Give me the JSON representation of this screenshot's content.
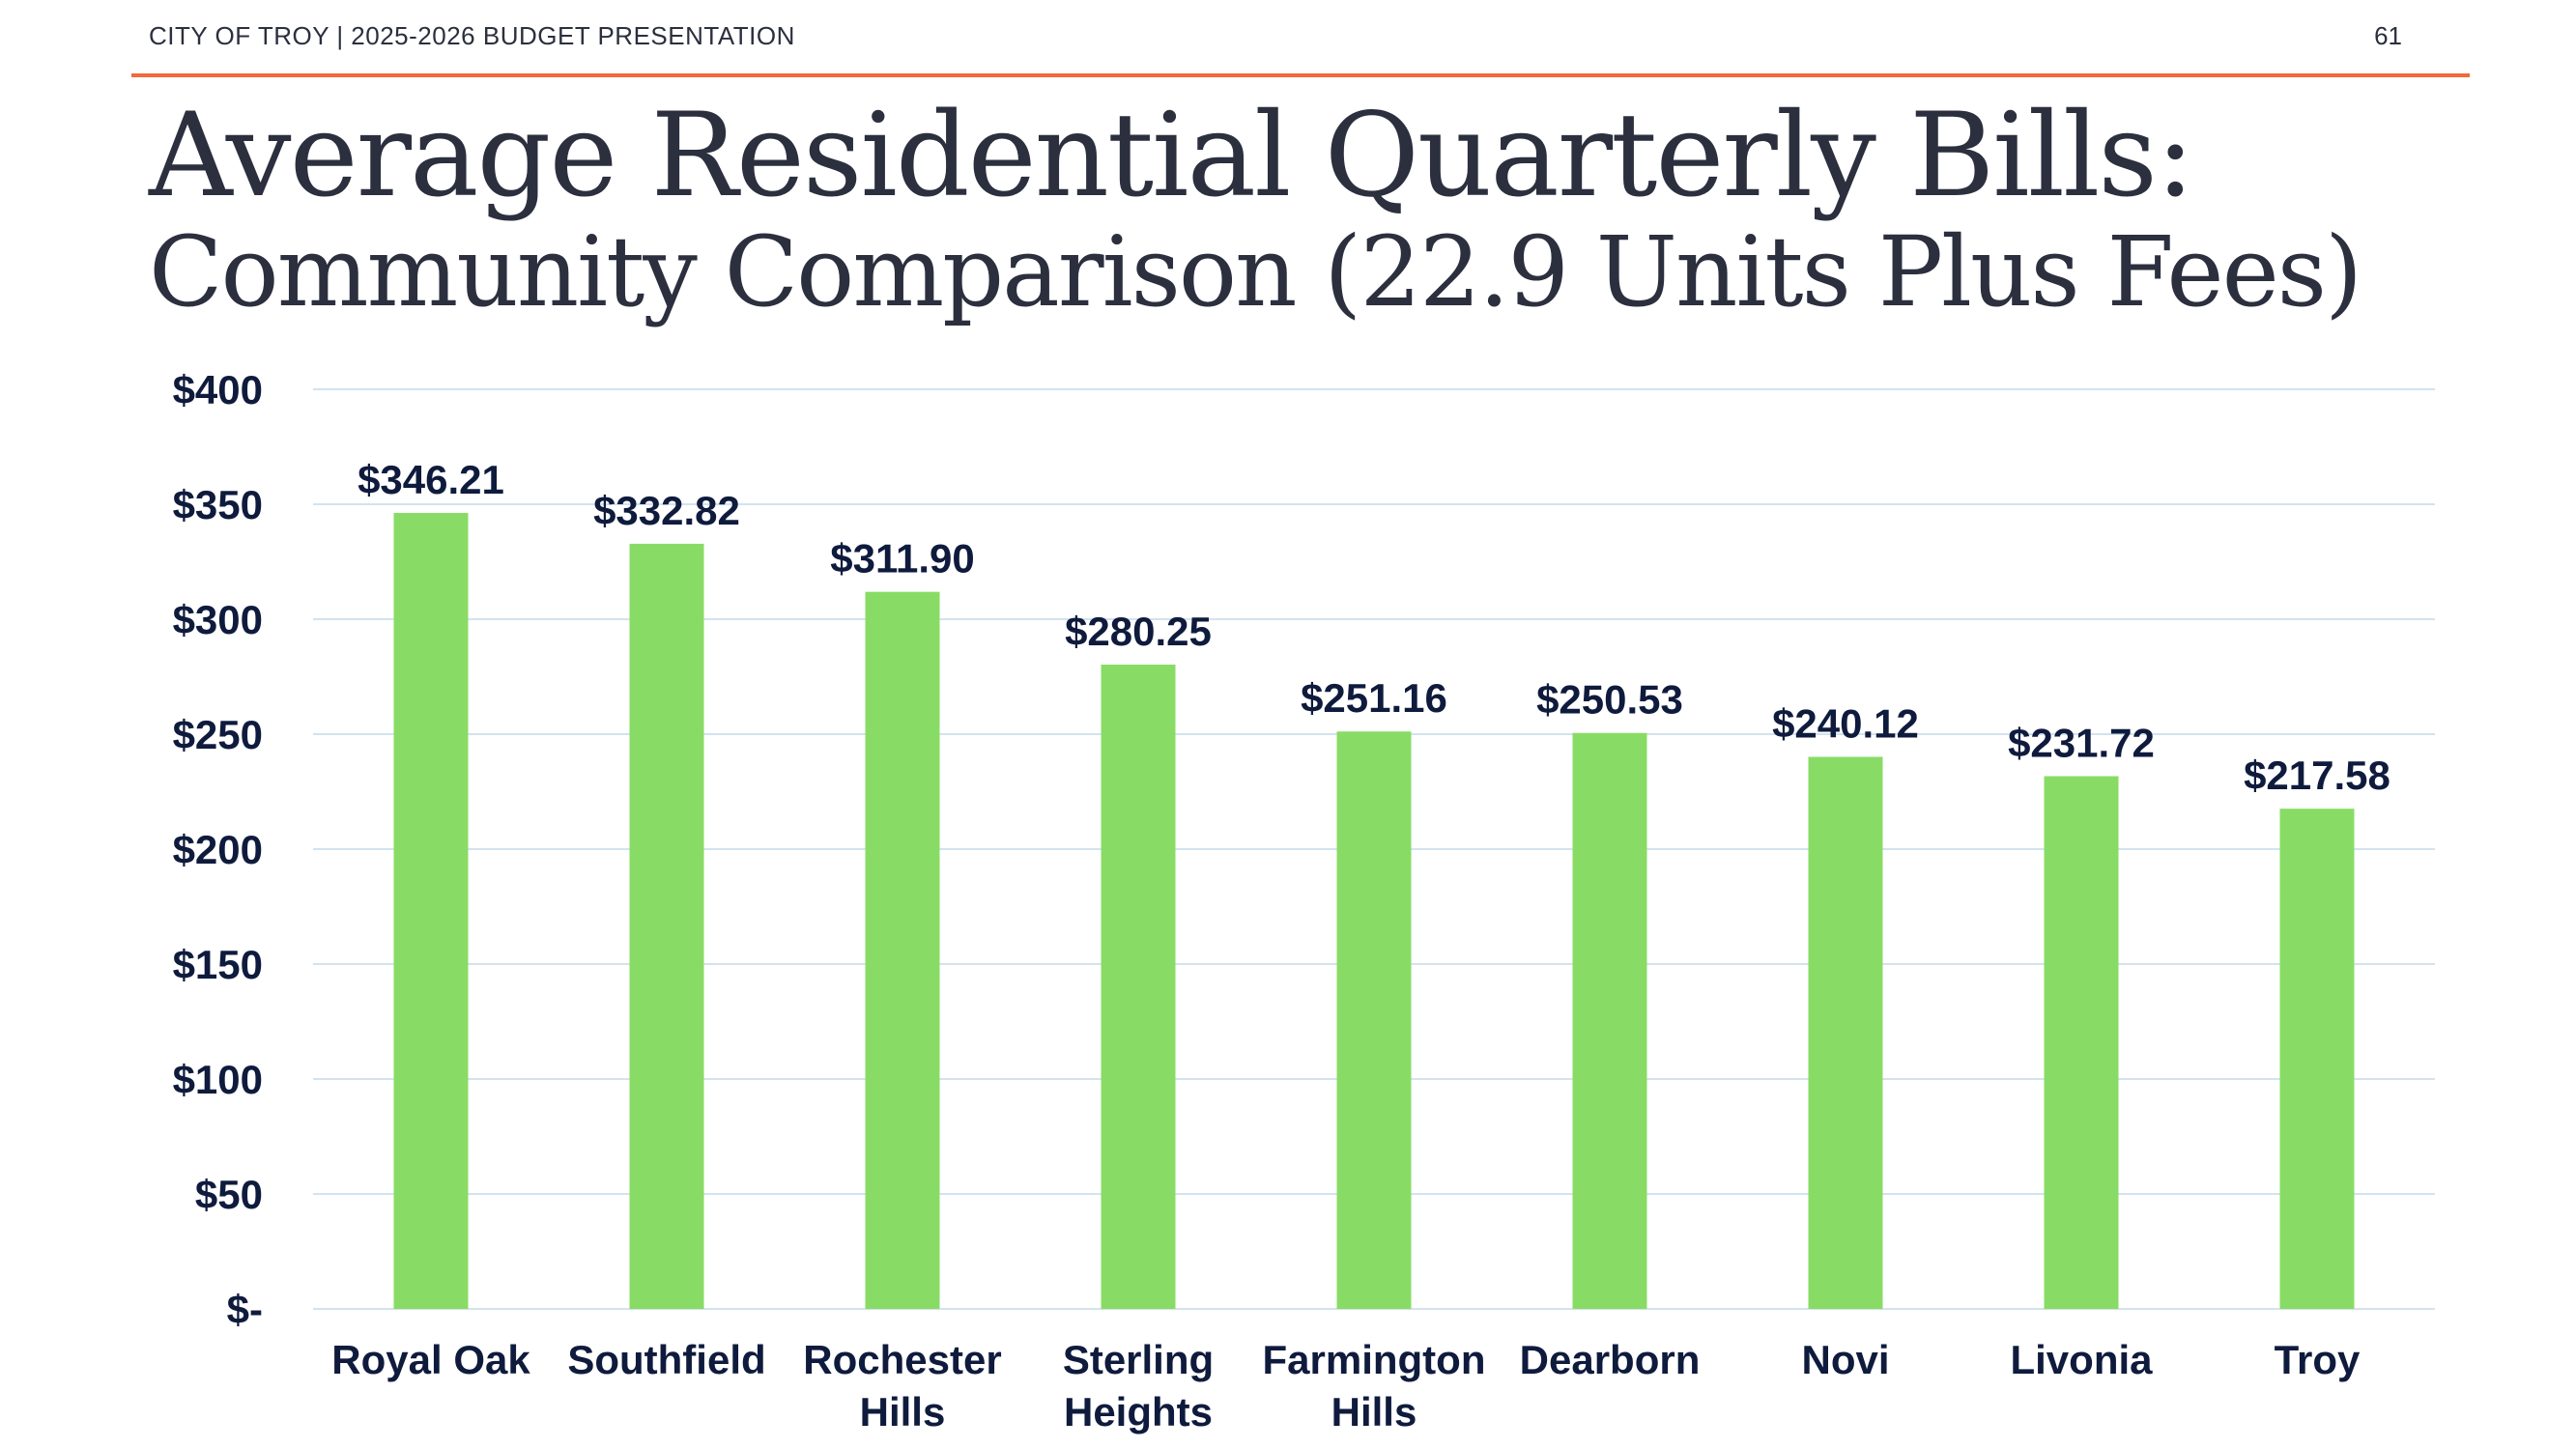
{
  "header": {
    "text": "CITY OF TROY | 2025-2026 BUDGET PRESENTATION",
    "page_number": "61"
  },
  "colors": {
    "accent_rule": "#f2693a",
    "bar": "#88dc65",
    "text": "#0f1b3d",
    "grid": "#d3e3ef"
  },
  "chart_data": {
    "type": "bar",
    "title": "Average Residential Quarterly Bills:",
    "subtitle": "Community Comparison (22.9 Units Plus Fees)",
    "categories": [
      "Royal Oak",
      "Southfield",
      "Rochester Hills",
      "Sterling Heights",
      "Farmington Hills",
      "Dearborn",
      "Novi",
      "Livonia",
      "Troy"
    ],
    "category_lines": [
      [
        "Royal Oak"
      ],
      [
        "Southfield"
      ],
      [
        "Rochester",
        "Hills"
      ],
      [
        "Sterling",
        "Heights"
      ],
      [
        "Farmington",
        "Hills"
      ],
      [
        "Dearborn"
      ],
      [
        "Novi"
      ],
      [
        "Livonia"
      ],
      [
        "Troy"
      ]
    ],
    "values": [
      346.21,
      332.82,
      311.9,
      280.25,
      251.16,
      250.53,
      240.12,
      231.72,
      217.58
    ],
    "data_labels": [
      "$346.21",
      "$332.82",
      "$311.90",
      "$280.25",
      "$251.16",
      "$250.53",
      "$240.12",
      "$231.72",
      "$217.58"
    ],
    "yticks": [
      0,
      50,
      100,
      150,
      200,
      250,
      300,
      350,
      400
    ],
    "ytick_labels": [
      "$-",
      "$50",
      "$100",
      "$150",
      "$200",
      "$250",
      "$300",
      "$350",
      "$400"
    ],
    "ylim": [
      0,
      400
    ],
    "xlabel": "",
    "ylabel": "",
    "grid": true,
    "legend": false
  }
}
